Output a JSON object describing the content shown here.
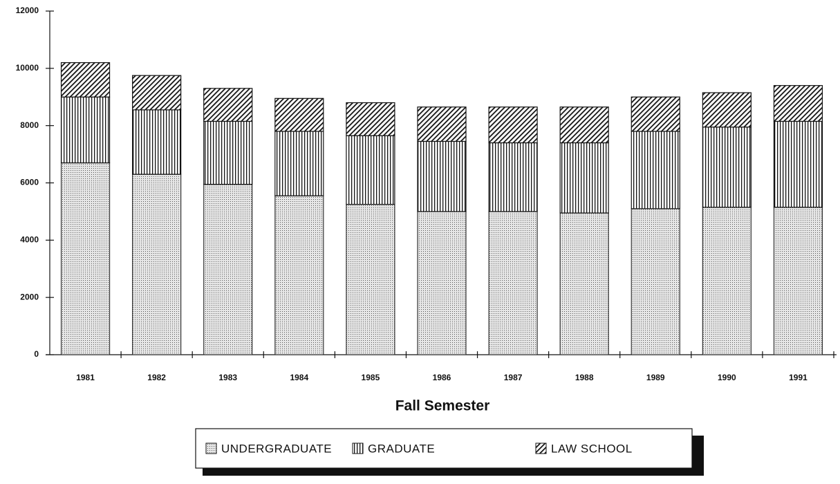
{
  "chart_data": {
    "type": "stacked_bar",
    "x_label": "Fall Semester",
    "categories": [
      "1981",
      "1982",
      "1983",
      "1984",
      "1985",
      "1986",
      "1987",
      "1988",
      "1989",
      "1990",
      "1991"
    ],
    "series": [
      {
        "name": "UNDERGRADUATE",
        "pattern": "dots",
        "color": "#555555",
        "values": [
          6700,
          6300,
          5950,
          5550,
          5250,
          5000,
          5000,
          4950,
          5100,
          5150,
          5150
        ]
      },
      {
        "name": "GRADUATE",
        "pattern": "vertical",
        "color": "#111111",
        "values": [
          2300,
          2250,
          2200,
          2250,
          2400,
          2450,
          2400,
          2450,
          2700,
          2800,
          3000
        ]
      },
      {
        "name": "LAW SCHOOL",
        "pattern": "diagonal",
        "color": "#111111",
        "values": [
          1200,
          1200,
          1150,
          1150,
          1150,
          1200,
          1250,
          1250,
          1200,
          1200,
          1250
        ]
      }
    ],
    "ylim": [
      0,
      12000
    ],
    "yticks": [
      0,
      2000,
      4000,
      6000,
      8000,
      10000,
      12000
    ]
  }
}
